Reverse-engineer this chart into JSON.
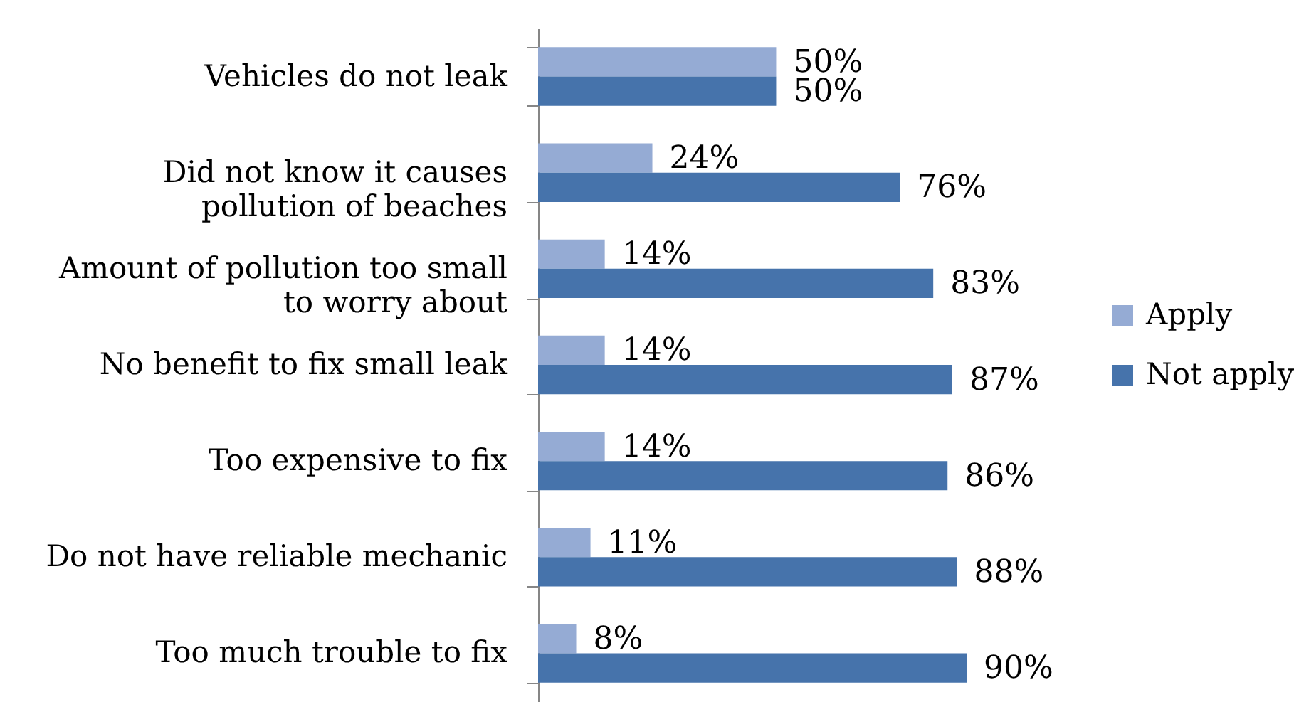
{
  "chart_data": {
    "type": "bar",
    "orientation": "horizontal",
    "categories": [
      "Vehicles do not leak",
      "Did not know it causes pollution of beaches",
      "Amount of pollution too small to worry about",
      "No benefit to fix small leak",
      "Too expensive to fix",
      "Do not have reliable mechanic",
      "Too much trouble to fix"
    ],
    "series": [
      {
        "name": "Apply",
        "color": "#95abd4",
        "values": [
          50,
          24,
          14,
          14,
          14,
          11,
          8
        ],
        "value_labels": [
          "50%",
          "24%",
          "14%",
          "14%",
          "14%",
          "11%",
          "8%"
        ]
      },
      {
        "name": "Not apply",
        "color": "#4673ab",
        "values": [
          50,
          76,
          83,
          87,
          86,
          88,
          90
        ],
        "value_labels": [
          "50%",
          "76%",
          "83%",
          "87%",
          "86%",
          "88%",
          "90%"
        ]
      }
    ],
    "legend": "right",
    "tick_labels": "y"
  }
}
